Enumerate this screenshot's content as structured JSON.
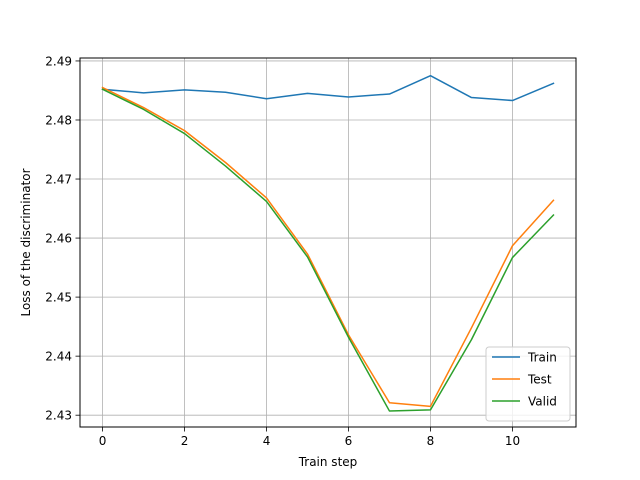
{
  "chart_data": {
    "type": "line",
    "xlabel": "Train step",
    "ylabel": "Loss of the discriminator",
    "xlim": [
      -0.55,
      11.55
    ],
    "ylim": [
      2.428,
      2.4905
    ],
    "xticks": [
      0,
      2,
      4,
      6,
      8,
      10
    ],
    "yticks": [
      2.43,
      2.44,
      2.45,
      2.46,
      2.47,
      2.48,
      2.49
    ],
    "xtick_labels": [
      "0",
      "2",
      "4",
      "6",
      "8",
      "10"
    ],
    "ytick_labels": [
      "2.43",
      "2.44",
      "2.45",
      "2.46",
      "2.47",
      "2.48",
      "2.49"
    ],
    "grid": true,
    "legend_position": "lower-right",
    "x": [
      0,
      1,
      2,
      3,
      4,
      5,
      6,
      7,
      8,
      9,
      10,
      11
    ],
    "series": [
      {
        "name": "Train",
        "color": "#1f77b4",
        "values": [
          2.4852,
          2.4846,
          2.4851,
          2.4847,
          2.4836,
          2.4845,
          2.4839,
          2.4844,
          2.4875,
          2.4838,
          2.4833,
          2.4862
        ]
      },
      {
        "name": "Test",
        "color": "#ff7f0e",
        "values": [
          2.4855,
          2.4821,
          2.4782,
          2.4728,
          2.4668,
          2.4573,
          2.4436,
          2.4321,
          2.4315,
          2.4448,
          2.4587,
          2.4664
        ]
      },
      {
        "name": "Valid",
        "color": "#2ca02c",
        "values": [
          2.4852,
          2.4818,
          2.4777,
          2.4722,
          2.4662,
          2.4568,
          2.4432,
          2.4307,
          2.4309,
          2.4428,
          2.4567,
          2.4639
        ]
      }
    ]
  }
}
